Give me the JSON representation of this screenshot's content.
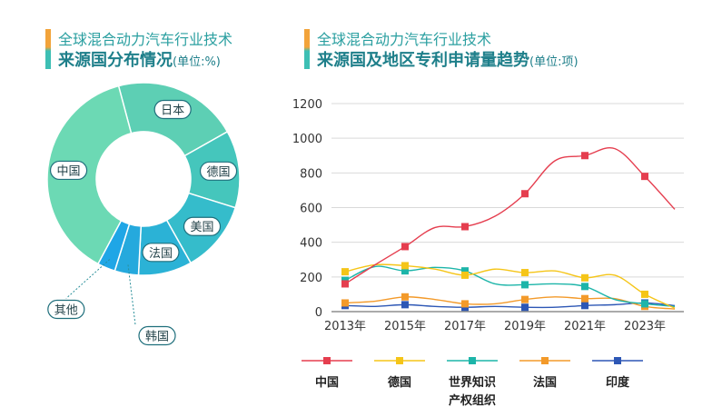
{
  "left_panel": {
    "title_line1": "全球混合动力汽车行业技术",
    "title_line2": "来源国分布情况",
    "unit": "(单位:%)"
  },
  "right_panel": {
    "title_line1": "全球混合动力汽车行业技术",
    "title_line2": "来源国及地区专利申请量趋势",
    "unit": "(单位:项)"
  },
  "chart_data": [
    {
      "type": "pie",
      "title": "全球混合动力汽车行业技术来源国分布情况(单位:%)",
      "labels": [
        "日本",
        "德国",
        "美国",
        "法国",
        "韩国",
        "其他",
        "中国"
      ],
      "values": [
        21,
        13,
        12,
        9,
        4,
        3,
        38
      ],
      "colors": [
        "#5dcfb4",
        "#45c6bc",
        "#35bccb",
        "#2bb2d6",
        "#25a9dd",
        "#1fa6e6",
        "#6cd9b4"
      ]
    },
    {
      "type": "line",
      "title": "全球混合动力汽车行业技术来源国及地区专利申请量趋势(单位:项)",
      "x": [
        "2013年",
        "2014年",
        "2015年",
        "2016年",
        "2017年",
        "2018年",
        "2019年",
        "2020年",
        "2021年",
        "2022年",
        "2023年",
        "2024年"
      ],
      "x_ticks": [
        "2013年",
        "2015年",
        "2017年",
        "2019年",
        "2021年",
        "2023年"
      ],
      "ylim": [
        0,
        1200
      ],
      "yticks": [
        0,
        200,
        400,
        600,
        800,
        1000,
        1200
      ],
      "grid": true,
      "legend_position": "bottom",
      "series": [
        {
          "name": "中国",
          "color": "#e53e4f",
          "values": [
            160,
            270,
            375,
            485,
            490,
            550,
            680,
            870,
            900,
            940,
            780,
            590
          ]
        },
        {
          "name": "德国",
          "color": "#f5c518",
          "values": [
            230,
            270,
            265,
            245,
            210,
            245,
            225,
            235,
            195,
            210,
            100,
            20
          ]
        },
        {
          "name": "世界知识产权组织",
          "name_lines": [
            "世界知识",
            "产权组织"
          ],
          "color": "#1db5a9",
          "values": [
            180,
            260,
            235,
            255,
            235,
            160,
            155,
            160,
            145,
            70,
            45,
            30
          ]
        },
        {
          "name": "法国",
          "color": "#f39a2a",
          "values": [
            50,
            60,
            85,
            70,
            45,
            45,
            70,
            85,
            75,
            75,
            30,
            15
          ]
        },
        {
          "name": "印度",
          "color": "#2d57b5",
          "values": [
            35,
            30,
            40,
            30,
            25,
            30,
            25,
            25,
            35,
            40,
            50,
            35
          ]
        }
      ]
    }
  ]
}
